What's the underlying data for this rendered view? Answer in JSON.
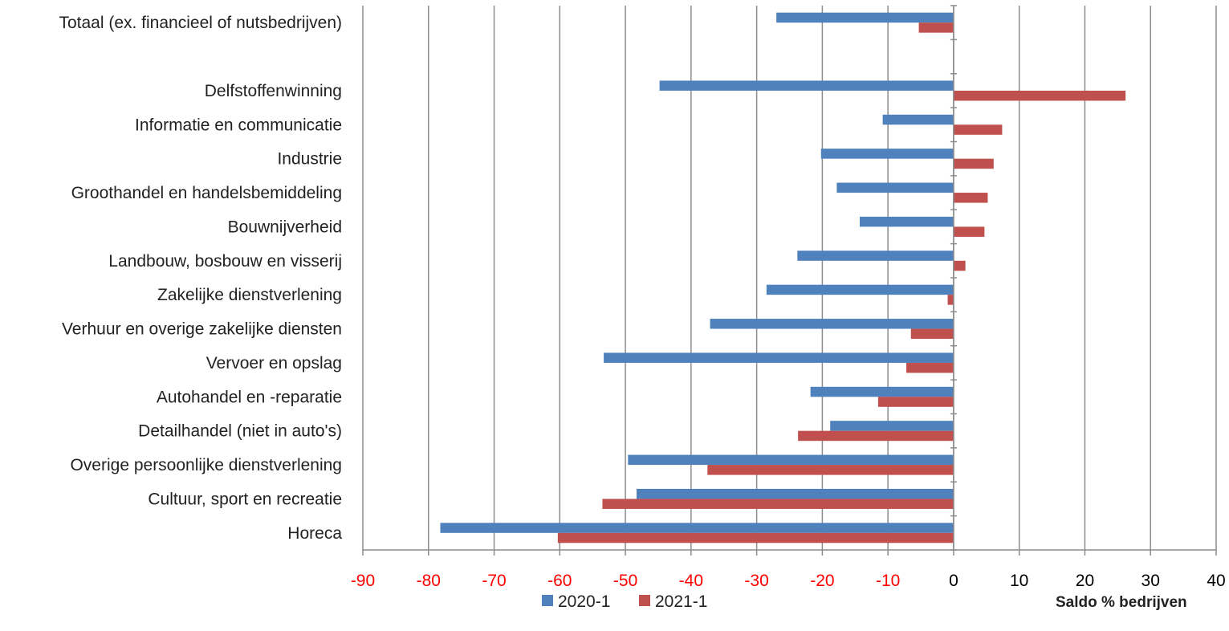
{
  "chart_data": {
    "type": "bar",
    "orientation": "horizontal",
    "categories": [
      "Totaal (ex. financieel of nutsbedrijven)",
      "",
      "Delfstoffenwinning",
      "Informatie en communicatie",
      "Industrie",
      "Groothandel en handelsbemiddeling",
      "Bouwnijverheid",
      "Landbouw, bosbouw en visserij",
      "Zakelijke dienstverlening",
      "Verhuur en overige zakelijke diensten",
      "Vervoer en opslag",
      "Autohandel en -reparatie",
      "Detailhandel (niet in auto's)",
      "Overige persoonlijke dienstverlening",
      "Cultuur, sport en recreatie",
      "Horeca"
    ],
    "series": [
      {
        "name": "2020-1",
        "color": "#4f81bd",
        "values": [
          -27,
          null,
          -44.8,
          -10.8,
          -20.2,
          -17.8,
          -14.3,
          -23.8,
          -28.5,
          -37.1,
          -53.3,
          -21.8,
          -18.8,
          -49.6,
          -48.3,
          -78.2
        ]
      },
      {
        "name": "2021-1",
        "color": "#c0504d",
        "values": [
          -5.3,
          null,
          26.2,
          7.4,
          6.1,
          5.2,
          4.7,
          1.8,
          -0.9,
          -6.5,
          -7.2,
          -11.5,
          -23.7,
          -37.5,
          -53.5,
          -60.3
        ]
      }
    ],
    "xlim": [
      -90,
      40
    ],
    "xticks": [
      "-90",
      "-80",
      "-70",
      "-60",
      "-50",
      "-40",
      "-30",
      "-20",
      "-10",
      "0",
      "10",
      "20",
      "30",
      "40"
    ],
    "xlabel": "Saldo % bedrijven",
    "grid": "vertical",
    "legend_position": "bottom",
    "tick_label_colors": {
      "negative": "#ff0000",
      "non_negative": "#000000"
    }
  }
}
